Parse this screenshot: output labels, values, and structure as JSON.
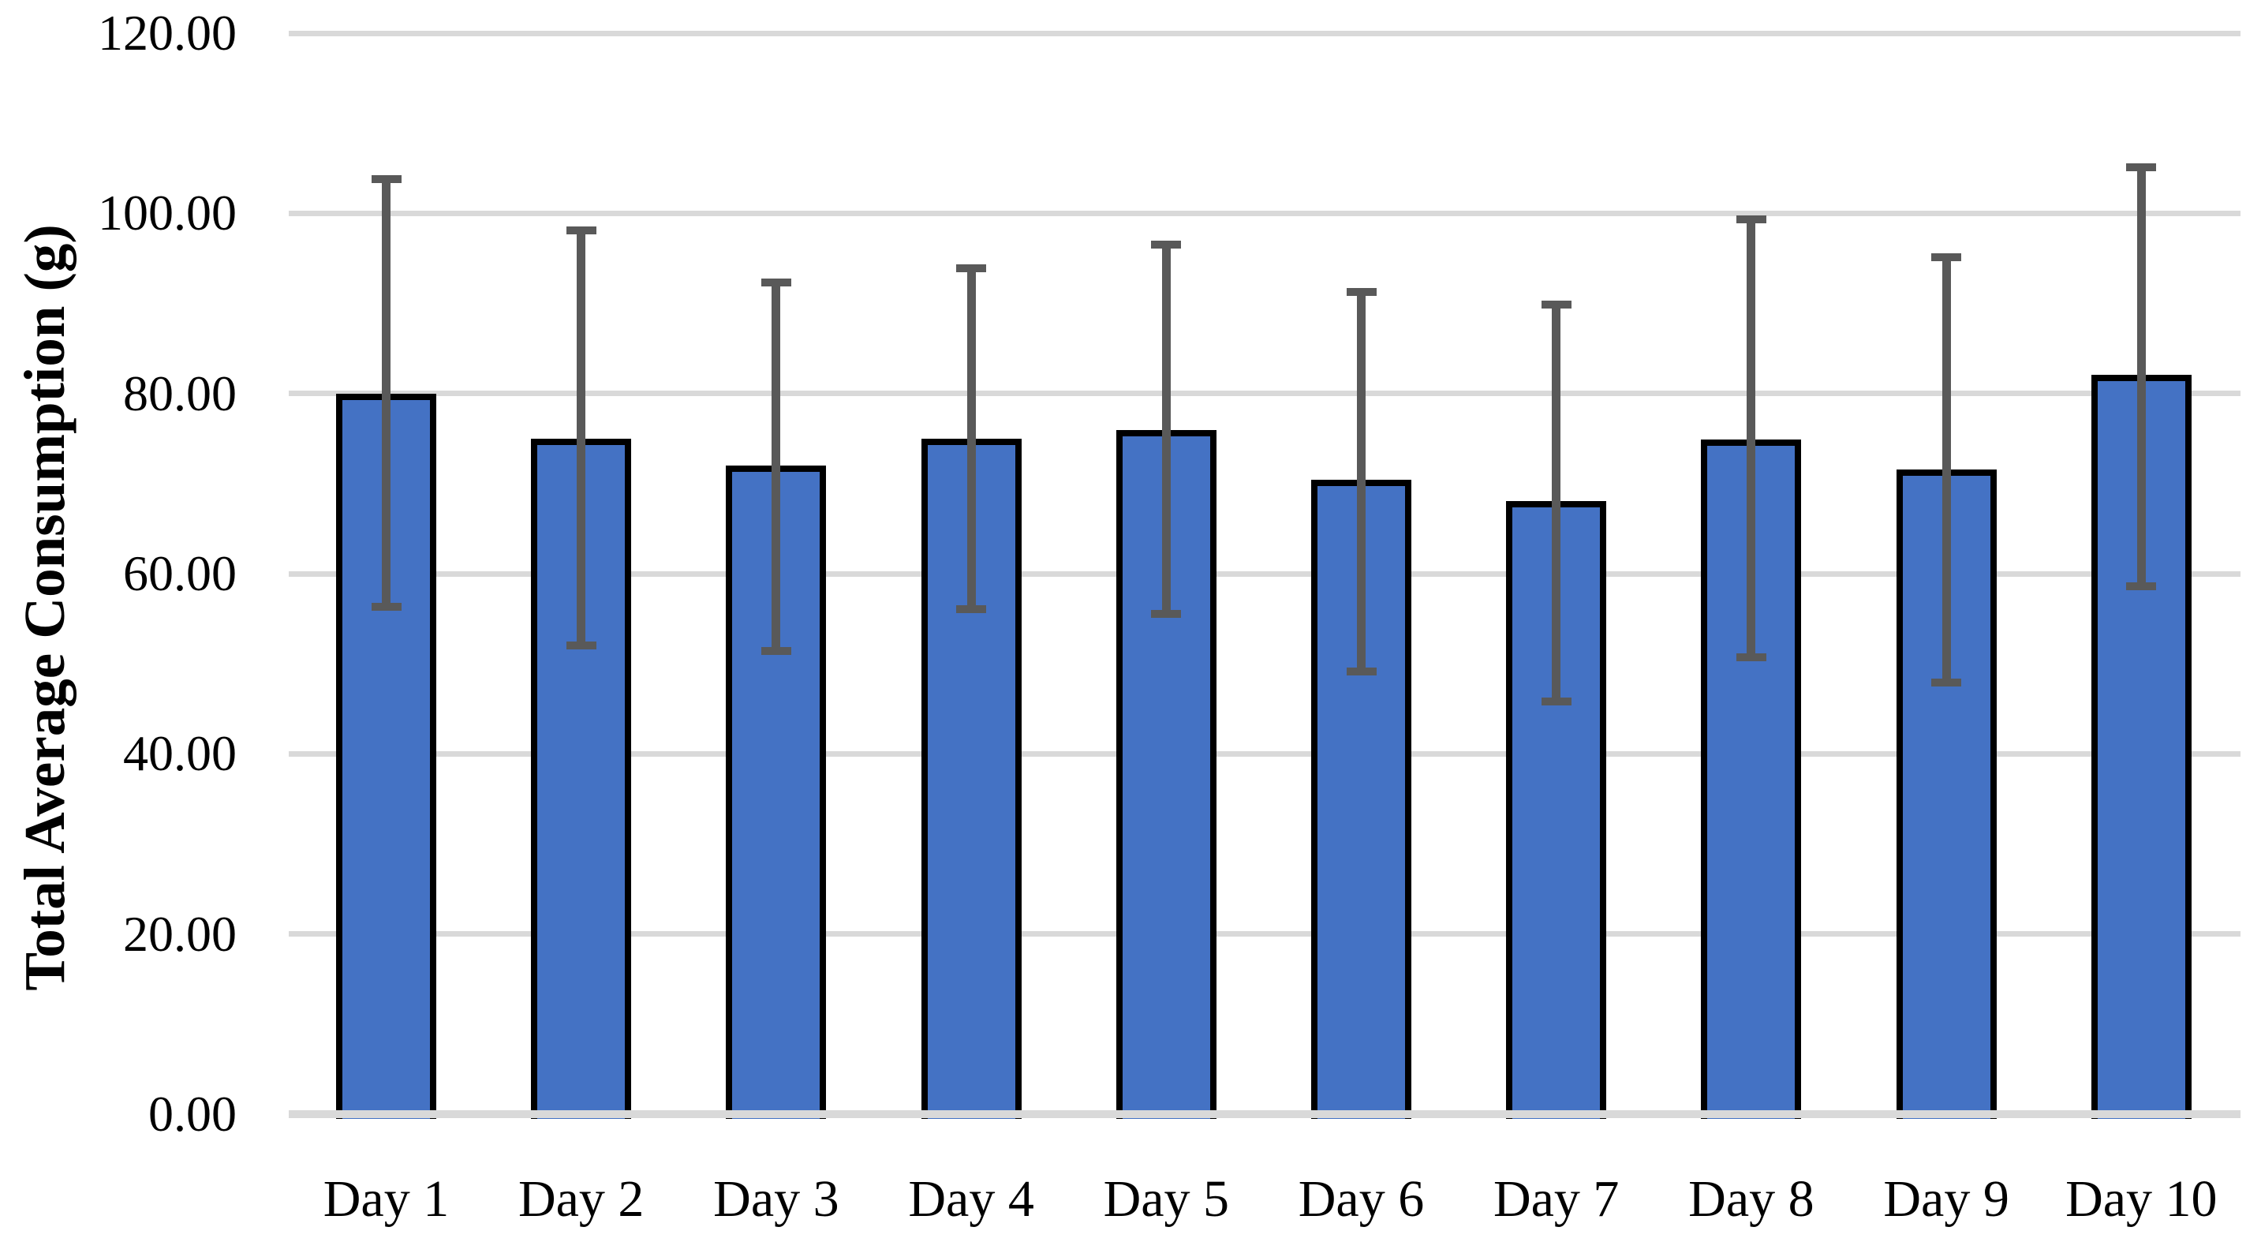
{
  "figure": {
    "background": "#ffffff"
  },
  "chart_data": {
    "type": "bar",
    "title": "",
    "xlabel": "",
    "ylabel": "Total Average Consumption (g)",
    "categories": [
      "Day 1",
      "Day 2",
      "Day 3",
      "Day 4",
      "Day 5",
      "Day 6",
      "Day 7",
      "Day 8",
      "Day 9",
      "Day 10"
    ],
    "values": [
      80.0,
      75.0,
      72.0,
      75.0,
      75.9,
      70.4,
      68.1,
      74.9,
      71.6,
      82.1
    ],
    "error_bars": {
      "upper": [
        103.8,
        98.1,
        92.3,
        93.9,
        96.5,
        91.3,
        89.9,
        99.3,
        95.1,
        105.1
      ],
      "lower": [
        56.3,
        52.0,
        51.4,
        56.1,
        55.5,
        49.1,
        45.8,
        50.7,
        47.9,
        58.6
      ]
    },
    "ylim": [
      0,
      120
    ],
    "ytick_step": 20,
    "ytick_labels": [
      "0.00",
      "20.00",
      "40.00",
      "60.00",
      "80.00",
      "100.00",
      "120.00"
    ],
    "grid": true,
    "legend": false,
    "colors": {
      "bar_fill": "#4472C4",
      "bar_border": "#000000",
      "error_bar": "#595959",
      "gridline": "#D9D9D9",
      "text": "#000000"
    }
  }
}
